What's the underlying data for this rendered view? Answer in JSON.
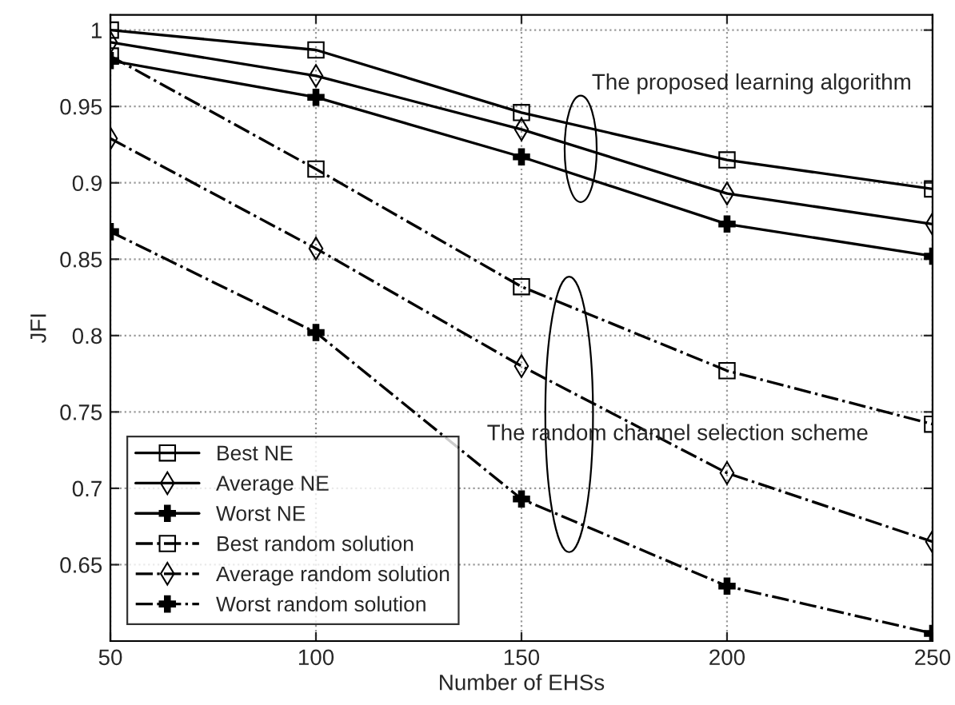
{
  "chart_data": {
    "type": "line",
    "xlabel": "Number of EHSs",
    "ylabel": "JFI",
    "x": [
      50,
      100,
      150,
      200,
      250
    ],
    "xlim": [
      50,
      250
    ],
    "xticks": [
      50,
      100,
      150,
      200,
      250
    ],
    "ylim": [
      0.6,
      1.01
    ],
    "yticks": [
      0.65,
      0.7,
      0.75,
      0.8,
      0.85,
      0.9,
      0.95,
      1
    ],
    "grid": true,
    "legend": "bottom left",
    "series": [
      {
        "name": "Best NE",
        "color": "#000000",
        "marker": "square",
        "line_style": "solid",
        "values": [
          1.0,
          0.987,
          0.946,
          0.915,
          0.896
        ]
      },
      {
        "name": "Average NE",
        "color": "#000000",
        "marker": "diamond",
        "line_style": "solid",
        "values": [
          0.992,
          0.97,
          0.935,
          0.893,
          0.873
        ]
      },
      {
        "name": "Worst NE",
        "color": "#000000",
        "marker": "cross",
        "line_style": "solid",
        "values": [
          0.98,
          0.956,
          0.917,
          0.873,
          0.852
        ]
      },
      {
        "name": "Best random solution",
        "color": "#000000",
        "marker": "square",
        "line_style": "dashdot",
        "values": [
          0.983,
          0.909,
          0.832,
          0.777,
          0.742
        ]
      },
      {
        "name": "Average random solution",
        "color": "#000000",
        "marker": "diamond",
        "line_style": "dashdot",
        "values": [
          0.929,
          0.857,
          0.78,
          0.71,
          0.665
        ]
      },
      {
        "name": "Worst random solution",
        "color": "#000000",
        "marker": "cross",
        "line_style": "dashdot",
        "values": [
          0.868,
          0.802,
          0.693,
          0.636,
          0.605
        ]
      }
    ],
    "annotations": [
      "The proposed learning algorithm",
      "The random channel selection scheme"
    ]
  }
}
